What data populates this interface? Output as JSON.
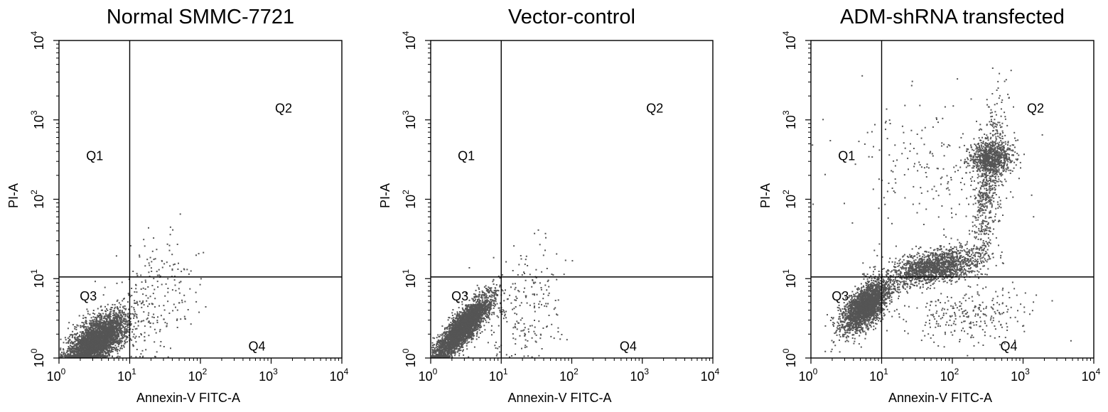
{
  "chart_data": [
    {
      "type": "scatter",
      "title": "Normal SMMC-7721",
      "xlabel": "Annexin-V FITC-A",
      "ylabel": "PI-A",
      "xscale": "log",
      "yscale": "log",
      "xlim": [
        1,
        10000
      ],
      "ylim": [
        1,
        10000
      ],
      "xticks": [
        {
          "base": "10",
          "exp": "0"
        },
        {
          "base": "10",
          "exp": "1"
        },
        {
          "base": "10",
          "exp": "2"
        },
        {
          "base": "10",
          "exp": "3"
        },
        {
          "base": "10",
          "exp": "4"
        }
      ],
      "yticks": [
        {
          "base": "10",
          "exp": "0"
        },
        {
          "base": "10",
          "exp": "1"
        },
        {
          "base": "10",
          "exp": "2"
        },
        {
          "base": "10",
          "exp": "3"
        },
        {
          "base": "10",
          "exp": "4"
        }
      ],
      "gate": {
        "x": 10,
        "y": 10.5
      },
      "quadrants": [
        {
          "name": "Q1",
          "x": 3.2,
          "y": 350
        },
        {
          "name": "Q2",
          "x": 1500,
          "y": 1400
        },
        {
          "name": "Q3",
          "x": 2.6,
          "y": 6
        },
        {
          "name": "Q4",
          "x": 630,
          "y": 1.4
        }
      ],
      "color": "#555555",
      "populations": [
        {
          "cx": 3.5,
          "cy": 1.7,
          "sx": 0.2,
          "sy": 0.16,
          "rho": 0.55,
          "n": 3400
        },
        {
          "cx": 20,
          "cy": 5,
          "sx": 0.3,
          "sy": 0.42,
          "rho": 0.25,
          "n": 260
        }
      ]
    },
    {
      "type": "scatter",
      "title": "Vector-control",
      "xlabel": "Annexin-V FITC-A",
      "ylabel": "PI-A",
      "xscale": "log",
      "yscale": "log",
      "xlim": [
        1,
        10000
      ],
      "ylim": [
        1,
        10000
      ],
      "xticks": [
        {
          "base": "10",
          "exp": "0"
        },
        {
          "base": "10",
          "exp": "1"
        },
        {
          "base": "10",
          "exp": "2"
        },
        {
          "base": "10",
          "exp": "3"
        },
        {
          "base": "10",
          "exp": "4"
        }
      ],
      "yticks": [
        {
          "base": "10",
          "exp": "0"
        },
        {
          "base": "10",
          "exp": "1"
        },
        {
          "base": "10",
          "exp": "2"
        },
        {
          "base": "10",
          "exp": "3"
        },
        {
          "base": "10",
          "exp": "4"
        }
      ],
      "gate": {
        "x": 10,
        "y": 10.5
      },
      "quadrants": [
        {
          "name": "Q1",
          "x": 3.2,
          "y": 350
        },
        {
          "name": "Q2",
          "x": 1500,
          "y": 1400
        },
        {
          "name": "Q3",
          "x": 2.6,
          "y": 6
        },
        {
          "name": "Q4",
          "x": 630,
          "y": 1.4
        }
      ],
      "color": "#555555",
      "populations": [
        {
          "cx": 2.9,
          "cy": 2.4,
          "sx": 0.2,
          "sy": 0.2,
          "rho": 0.85,
          "n": 3400
        },
        {
          "cx": 22,
          "cy": 4,
          "sx": 0.3,
          "sy": 0.4,
          "rho": 0.2,
          "n": 220
        }
      ]
    },
    {
      "type": "scatter",
      "title": "ADM-shRNA transfected",
      "xlabel": "Annexin-V FITC-A",
      "ylabel": "PI-A",
      "xscale": "log",
      "yscale": "log",
      "xlim": [
        1,
        10000
      ],
      "ylim": [
        1,
        10000
      ],
      "xticks": [
        {
          "base": "10",
          "exp": "0"
        },
        {
          "base": "10",
          "exp": "1"
        },
        {
          "base": "10",
          "exp": "2"
        },
        {
          "base": "10",
          "exp": "3"
        },
        {
          "base": "10",
          "exp": "4"
        }
      ],
      "yticks": [
        {
          "base": "10",
          "exp": "0"
        },
        {
          "base": "10",
          "exp": "1"
        },
        {
          "base": "10",
          "exp": "2"
        },
        {
          "base": "10",
          "exp": "3"
        },
        {
          "base": "10",
          "exp": "4"
        }
      ],
      "gate": {
        "x": 10,
        "y": 10.5
      },
      "quadrants": [
        {
          "name": "Q1",
          "x": 3.2,
          "y": 350
        },
        {
          "name": "Q2",
          "x": 1500,
          "y": 1400
        },
        {
          "name": "Q3",
          "x": 2.6,
          "y": 6
        },
        {
          "name": "Q4",
          "x": 630,
          "y": 1.4
        }
      ],
      "color": "#555555",
      "populations": [
        {
          "cx": 6,
          "cy": 4.5,
          "sx": 0.17,
          "sy": 0.16,
          "rho": 0.6,
          "n": 2400
        },
        {
          "cx": 55,
          "cy": 14,
          "sx": 0.32,
          "sy": 0.12,
          "rho": 0.45,
          "n": 1600
        },
        {
          "cx": 320,
          "cy": 180,
          "sx": 0.12,
          "sy": 0.5,
          "rho": 0.6,
          "n": 650
        },
        {
          "cx": 360,
          "cy": 330,
          "sx": 0.15,
          "sy": 0.1,
          "rho": 0.0,
          "n": 700
        },
        {
          "cx": 60,
          "cy": 250,
          "sx": 0.6,
          "sy": 0.45,
          "rho": 0.0,
          "n": 220
        },
        {
          "cx": 180,
          "cy": 3.5,
          "sx": 0.45,
          "sy": 0.2,
          "rho": 0.0,
          "n": 260
        }
      ]
    }
  ]
}
